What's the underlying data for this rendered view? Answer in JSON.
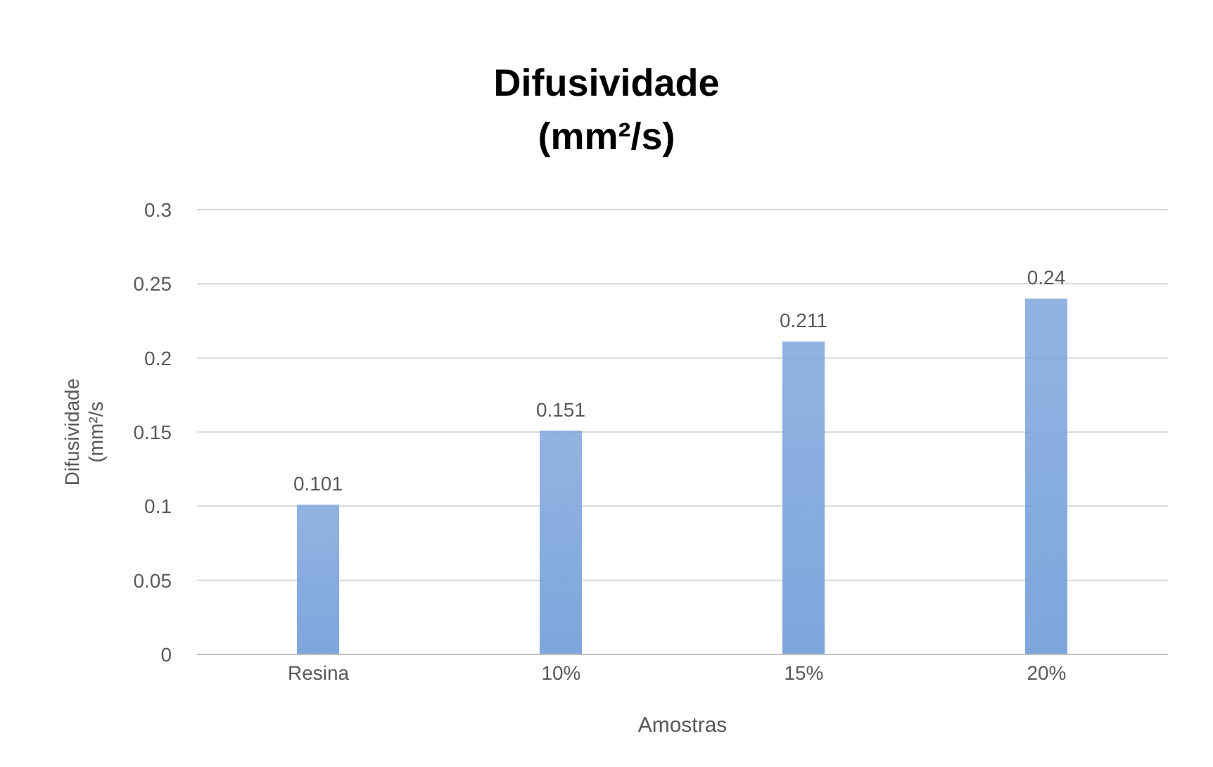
{
  "chart_data": {
    "type": "bar",
    "title": "Difusividade (mm²/s)",
    "xlabel": "Amostras",
    "ylabel": "Difusividade (mm²/s",
    "categories": [
      "Resina",
      "10%",
      "15%",
      "20%"
    ],
    "values": [
      0.101,
      0.151,
      0.211,
      0.24
    ],
    "color": "#7ea6dc",
    "ylim": [
      0,
      0.3
    ],
    "yticks": [
      0,
      0.05,
      0.1,
      0.15,
      0.2,
      0.25,
      0.3
    ],
    "grid": "y",
    "data_labels": true,
    "legend": false
  }
}
